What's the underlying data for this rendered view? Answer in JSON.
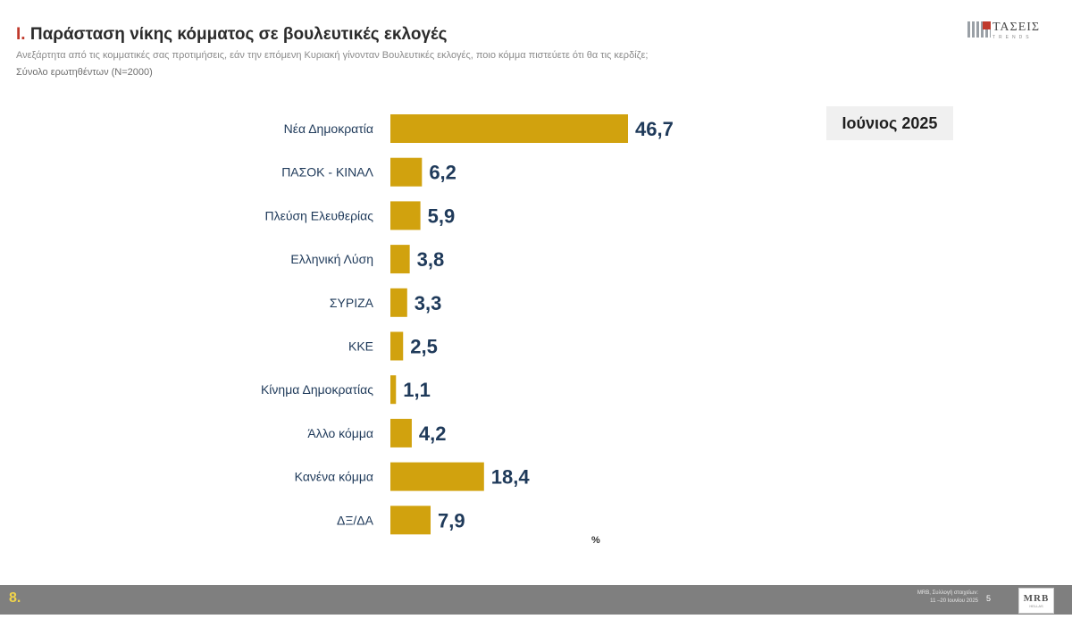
{
  "header": {
    "title_number": "I.",
    "title_text": "Παράσταση νίκης κόμματος σε βουλευτικές εκλογές",
    "subtitle": "Ανεξάρτητα από τις κομματικές σας προτιμήσεις, εάν την επόμενη Κυριακή γίνονταν Βουλευτικές εκλογές, ποιο κόμμα πιστεύετε ότι θα τις κερδίζε;",
    "sample": "Σύνολο ερωτηθέντων (N=2000)"
  },
  "logo": {
    "main": "ΤΑΣΕΙΣ",
    "sub": "TRENDS"
  },
  "period_label": "Ιούνιος 2025",
  "chart_data": {
    "type": "bar",
    "orientation": "horizontal",
    "categories": [
      "Νέα Δημοκρατία",
      "ΠΑΣΟΚ - ΚΙΝΑΛ",
      "Πλεύση Ελευθερίας",
      "Ελληνική Λύση",
      "ΣΥΡΙΖΑ",
      "ΚΚΕ",
      "Κίνημα Δημοκρατίας",
      "Άλλο κόμμα",
      "Κανένα κόμμα",
      "ΔΞ/ΔΑ"
    ],
    "values": [
      46.7,
      6.2,
      5.9,
      3.8,
      3.3,
      2.5,
      1.1,
      4.2,
      18.4,
      7.9
    ],
    "value_labels": [
      "46,7",
      "6,2",
      "5,9",
      "3,8",
      "3,3",
      "2,5",
      "1,1",
      "4,2",
      "18,4",
      "7,9"
    ],
    "unit_label": "%",
    "bar_color": "#d1a20e",
    "xlim": [
      0,
      50
    ],
    "grid": false,
    "legend": "none"
  },
  "footer": {
    "page_number": "8.",
    "source_line1": "MRB, Συλλογή στοιχείων:",
    "source_line2": "11 –20 Ιουνίου 2025",
    "slide_number": "5",
    "logo_text": "MRB",
    "logo_sub": "HELLAS"
  }
}
